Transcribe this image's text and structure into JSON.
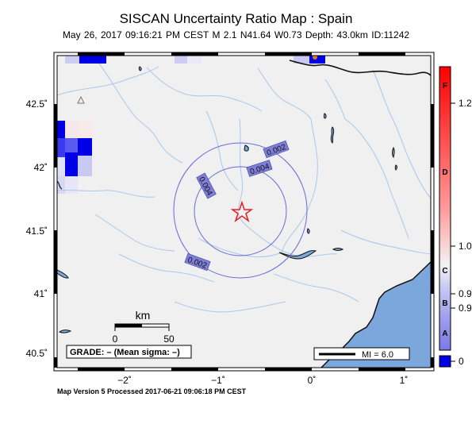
{
  "header": {
    "title": "SISCAN Uncertainty Ratio Map : Spain",
    "subtitle": "May 26, 2017 09:16:21 PM CEST   M 2.1   N41.64 W0.73   Depth: 43.0km   ID:11242"
  },
  "footer": {
    "text": "Map Version 5 Processed 2017-06-21 09:06:18 PM CEST"
  },
  "axes": {
    "lat_labels": [
      "42.5˚",
      "42˚",
      "41.5˚",
      "41˚",
      "40.5˚"
    ],
    "lon_labels": [
      "−2˚",
      "−1˚",
      "0˚",
      "1˚"
    ]
  },
  "contours": [
    "0.002",
    "0.004",
    "0.004",
    "0.002"
  ],
  "epicenter": {
    "lat": 41.64,
    "lon": -0.73,
    "symbol": "star-icon"
  },
  "scale_bar": {
    "title": "km",
    "ticks": [
      "0",
      "50"
    ]
  },
  "grade_box": {
    "text": "GRADE: – (Mean sigma: –)"
  },
  "legend_mi": {
    "text": "MI = 6.0"
  },
  "colorbar": {
    "grades": [
      "F",
      "D",
      "C",
      "B",
      "A"
    ],
    "values": [
      "1.2",
      "1.0",
      "0.9",
      "0.9",
      "0"
    ],
    "colors": {
      "top": "#ff0000",
      "mid": "#f2f2f2",
      "bottom": "#0000e6"
    }
  },
  "colors": {
    "land": "#f0f0f0",
    "sea": "#7ba7dc",
    "rivers": "#a9c8ec",
    "contour": "#6a6ad8",
    "contour_label_bg": "#7f7fd8",
    "star": "#e21f1f"
  }
}
